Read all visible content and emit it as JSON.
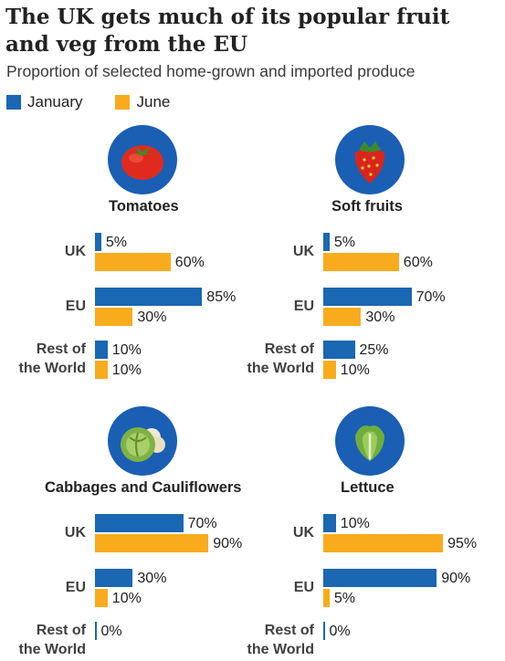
{
  "title": "The UK gets much of its popular fruit and veg from the EU",
  "subtitle": "Proportion of selected home-grown and imported produce",
  "colors": {
    "january": "#1a67b3",
    "june": "#f8ac1d"
  },
  "legend": [
    {
      "label": "January",
      "color": "#1a67b3"
    },
    {
      "label": "June",
      "color": "#f8ac1d"
    }
  ],
  "chart_data": [
    {
      "type": "bar",
      "title": "Tomatoes",
      "icon": "tomato-icon",
      "categories": [
        "UK",
        "EU",
        "Rest of the World"
      ],
      "series": [
        {
          "name": "January",
          "values": [
            5,
            85,
            10
          ]
        },
        {
          "name": "June",
          "values": [
            60,
            30,
            10
          ]
        }
      ],
      "ylim": [
        0,
        100
      ]
    },
    {
      "type": "bar",
      "title": "Soft fruits",
      "icon": "strawberry-icon",
      "categories": [
        "UK",
        "EU",
        "Rest of the World"
      ],
      "series": [
        {
          "name": "January",
          "values": [
            5,
            70,
            25
          ]
        },
        {
          "name": "June",
          "values": [
            60,
            30,
            10
          ]
        }
      ],
      "ylim": [
        0,
        100
      ]
    },
    {
      "type": "bar",
      "title": "Cabbages and Cauliflowers",
      "icon": "cabbage-cauliflower-icon",
      "categories": [
        "UK",
        "EU",
        "Rest of the World"
      ],
      "series": [
        {
          "name": "January",
          "values": [
            70,
            30,
            0
          ]
        },
        {
          "name": "June",
          "values": [
            90,
            10,
            null
          ]
        }
      ],
      "ylim": [
        0,
        100
      ]
    },
    {
      "type": "bar",
      "title": "Lettuce",
      "icon": "lettuce-icon",
      "categories": [
        "UK",
        "EU",
        "Rest of the World"
      ],
      "series": [
        {
          "name": "January",
          "values": [
            10,
            90,
            0
          ]
        },
        {
          "name": "June",
          "values": [
            95,
            5,
            null
          ]
        }
      ],
      "ylim": [
        0,
        100
      ]
    }
  ]
}
